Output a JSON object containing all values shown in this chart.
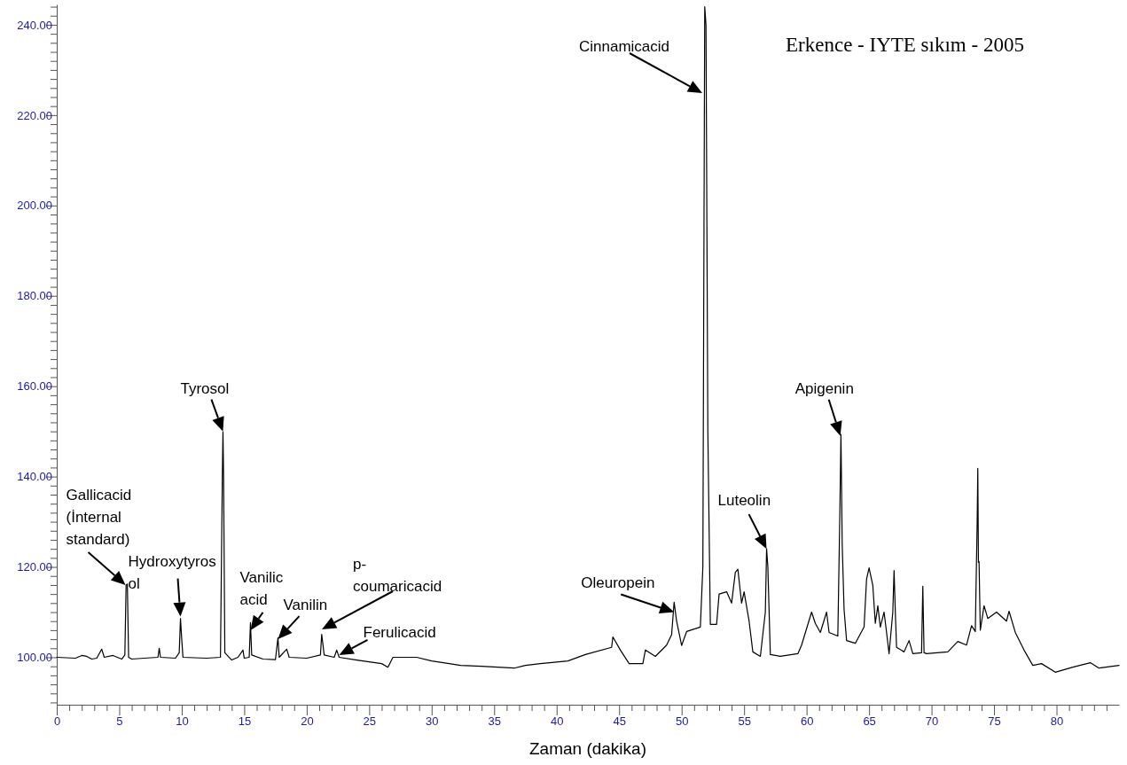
{
  "chart_data": {
    "type": "line",
    "title": "Erkence - IYTE sıkım - 2005",
    "xlabel": "Zaman (dakika)",
    "xlim": [
      0,
      85
    ],
    "ylim": [
      89.5,
      244.5
    ],
    "xticks": [
      0,
      {
        "value": 1,
        "label": null
      },
      {
        "value": 2,
        "label": null
      },
      {
        "value": 3,
        "label": null
      },
      {
        "value": 4,
        "label": null
      },
      5,
      {
        "value": 6,
        "label": null
      },
      {
        "value": 7,
        "label": null
      },
      {
        "value": 8,
        "label": null
      },
      {
        "value": 9,
        "label": null
      },
      10,
      {
        "value": 11,
        "label": null
      },
      {
        "value": 12,
        "label": null
      },
      {
        "value": 13,
        "label": null
      },
      {
        "value": 14,
        "label": null
      },
      15,
      {
        "value": 16,
        "label": null
      },
      {
        "value": 17,
        "label": null
      },
      {
        "value": 18,
        "label": null
      },
      {
        "value": 19,
        "label": null
      },
      20,
      {
        "value": 21,
        "label": null
      },
      {
        "value": 22,
        "label": null
      },
      {
        "value": 23,
        "label": null
      },
      {
        "value": 24,
        "label": null
      },
      25,
      {
        "value": 26,
        "label": null
      },
      {
        "value": 27,
        "label": null
      },
      {
        "value": 28,
        "label": null
      },
      {
        "value": 29,
        "label": null
      },
      30,
      {
        "value": 31,
        "label": null
      },
      {
        "value": 32,
        "label": null
      },
      {
        "value": 33,
        "label": null
      },
      {
        "value": 34,
        "label": null
      },
      35,
      {
        "value": 36,
        "label": null
      },
      {
        "value": 37,
        "label": null
      },
      {
        "value": 38,
        "label": null
      },
      {
        "value": 39,
        "label": null
      },
      40,
      {
        "value": 41,
        "label": null
      },
      {
        "value": 42,
        "label": null
      },
      {
        "value": 43,
        "label": null
      },
      {
        "value": 44,
        "label": null
      },
      45,
      {
        "value": 46,
        "label": null
      },
      {
        "value": 47,
        "label": null
      },
      {
        "value": 48,
        "label": null
      },
      {
        "value": 49,
        "label": null
      },
      50,
      {
        "value": 51,
        "label": null
      },
      {
        "value": 52,
        "label": null
      },
      {
        "value": 53,
        "label": null
      },
      {
        "value": 54,
        "label": null
      },
      55,
      {
        "value": 56,
        "label": null
      },
      {
        "value": 57,
        "label": null
      },
      {
        "value": 58,
        "label": null
      },
      {
        "value": 59,
        "label": null
      },
      60,
      {
        "value": 61,
        "label": null
      },
      {
        "value": 62,
        "label": null
      },
      {
        "value": 63,
        "label": null
      },
      {
        "value": 64,
        "label": null
      },
      65,
      {
        "value": 66,
        "label": null
      },
      {
        "value": 67,
        "label": null
      },
      {
        "value": 68,
        "label": null
      },
      {
        "value": 69,
        "label": null
      },
      70,
      {
        "value": 71,
        "label": null
      },
      {
        "value": 72,
        "label": null
      },
      {
        "value": 73,
        "label": null
      },
      {
        "value": 74,
        "label": null
      },
      75,
      {
        "value": 76,
        "label": null
      },
      {
        "value": 77,
        "label": null
      },
      {
        "value": 78,
        "label": null
      },
      {
        "value": 79,
        "label": null
      },
      80,
      {
        "value": 81,
        "label": null
      },
      {
        "value": 82,
        "label": null
      },
      {
        "value": 83,
        "label": null
      },
      {
        "value": 84,
        "label": null
      }
    ],
    "yticks": [
      {
        "value": 90,
        "label": null
      },
      {
        "value": 92,
        "label": null
      },
      {
        "value": 94,
        "label": null
      },
      {
        "value": 96,
        "label": null
      },
      {
        "value": 98,
        "label": null
      },
      {
        "value": 100,
        "label": "100.00"
      },
      {
        "value": 102,
        "label": null
      },
      {
        "value": 104,
        "label": null
      },
      {
        "value": 106,
        "label": null
      },
      {
        "value": 108,
        "label": null
      },
      {
        "value": 110,
        "label": null
      },
      {
        "value": 112,
        "label": null
      },
      {
        "value": 114,
        "label": null
      },
      {
        "value": 116,
        "label": null
      },
      {
        "value": 118,
        "label": null
      },
      {
        "value": 120,
        "label": "120.00"
      },
      {
        "value": 122,
        "label": null
      },
      {
        "value": 124,
        "label": null
      },
      {
        "value": 126,
        "label": null
      },
      {
        "value": 128,
        "label": null
      },
      {
        "value": 130,
        "label": null
      },
      {
        "value": 132,
        "label": null
      },
      {
        "value": 134,
        "label": null
      },
      {
        "value": 136,
        "label": null
      },
      {
        "value": 138,
        "label": null
      },
      {
        "value": 140,
        "label": "140.00"
      },
      {
        "value": 142,
        "label": null
      },
      {
        "value": 144,
        "label": null
      },
      {
        "value": 146,
        "label": null
      },
      {
        "value": 148,
        "label": null
      },
      {
        "value": 150,
        "label": null
      },
      {
        "value": 152,
        "label": null
      },
      {
        "value": 154,
        "label": null
      },
      {
        "value": 156,
        "label": null
      },
      {
        "value": 158,
        "label": null
      },
      {
        "value": 160,
        "label": "160.00"
      },
      {
        "value": 162,
        "label": null
      },
      {
        "value": 164,
        "label": null
      },
      {
        "value": 166,
        "label": null
      },
      {
        "value": 168,
        "label": null
      },
      {
        "value": 170,
        "label": null
      },
      {
        "value": 172,
        "label": null
      },
      {
        "value": 174,
        "label": null
      },
      {
        "value": 176,
        "label": null
      },
      {
        "value": 178,
        "label": null
      },
      {
        "value": 180,
        "label": "180.00"
      },
      {
        "value": 182,
        "label": null
      },
      {
        "value": 184,
        "label": null
      },
      {
        "value": 186,
        "label": null
      },
      {
        "value": 188,
        "label": null
      },
      {
        "value": 190,
        "label": null
      },
      {
        "value": 192,
        "label": null
      },
      {
        "value": 194,
        "label": null
      },
      {
        "value": 196,
        "label": null
      },
      {
        "value": 198,
        "label": null
      },
      {
        "value": 200,
        "label": "200.00"
      },
      {
        "value": 202,
        "label": null
      },
      {
        "value": 204,
        "label": null
      },
      {
        "value": 206,
        "label": null
      },
      {
        "value": 208,
        "label": null
      },
      {
        "value": 210,
        "label": null
      },
      {
        "value": 212,
        "label": null
      },
      {
        "value": 214,
        "label": null
      },
      {
        "value": 216,
        "label": null
      },
      {
        "value": 218,
        "label": null
      },
      {
        "value": 220,
        "label": "220.00"
      },
      {
        "value": 222,
        "label": null
      },
      {
        "value": 224,
        "label": null
      },
      {
        "value": 226,
        "label": null
      },
      {
        "value": 228,
        "label": null
      },
      {
        "value": 230,
        "label": null
      },
      {
        "value": 232,
        "label": null
      },
      {
        "value": 234,
        "label": null
      },
      {
        "value": 236,
        "label": null
      },
      {
        "value": 238,
        "label": null
      },
      {
        "value": 240,
        "label": "240.00"
      },
      {
        "value": 242,
        "label": null
      },
      {
        "value": 244,
        "label": null
      }
    ],
    "series": [
      {
        "color": "#000000",
        "x": [
          0,
          1.5,
          2,
          2.4,
          2.8,
          3.2,
          3.6,
          3.8,
          4.5,
          5.2,
          5.45,
          5.55,
          5.65,
          5.75,
          6,
          7,
          8.1,
          8.2,
          8.3,
          9.5,
          9.8,
          9.9,
          10.0,
          10.1,
          11,
          12,
          13.1,
          13.25,
          13.3,
          13.35,
          13.45,
          14,
          14.5,
          14.9,
          15.0,
          15.4,
          15.5,
          15.6,
          16.5,
          17.5,
          17.7,
          17.8,
          18.4,
          18.6,
          20,
          21.1,
          21.2,
          21.4,
          22.2,
          22.4,
          22.6,
          24,
          26,
          26.5,
          26.9,
          28.8,
          30,
          32.3,
          34,
          36.6,
          37.5,
          38.7,
          40.9,
          42.3,
          44.4,
          44.5,
          45.1,
          45.8,
          46.9,
          47.1,
          47.9,
          48.8,
          49.2,
          49.4,
          49.6,
          50.0,
          50.4,
          51.5,
          51.7,
          51.85,
          51.95,
          52.1,
          52.3,
          52.8,
          53,
          53.6,
          54,
          54.3,
          54.5,
          54.8,
          55.0,
          55.4,
          55.7,
          56.3,
          56.7,
          56.8,
          56.9,
          57.1,
          57.9,
          59.3,
          59.6,
          60.4,
          60.7,
          61.1,
          61.6,
          61.8,
          62.5,
          62.65,
          62.75,
          62.85,
          63.0,
          63.2,
          63.9,
          64.6,
          64.8,
          65.0,
          65.3,
          65.5,
          65.7,
          65.9,
          66.2,
          66.4,
          66.6,
          66.9,
          67.0,
          67.1,
          67.2,
          67.8,
          68.2,
          68.5,
          69.2,
          69.3,
          69.4,
          69.6,
          71.3,
          72.1,
          72.8,
          73.2,
          73.5,
          73.65,
          73.7,
          73.75,
          73.8,
          73.9,
          74.2,
          74.5,
          75.2,
          76.0,
          76.2,
          76.7,
          77.4,
          78.1,
          78.8,
          79.9,
          81.3,
          82.7,
          83.4,
          85
        ],
        "values": [
          100,
          99.8,
          100.4,
          100.2,
          99.6,
          99.8,
          101.8,
          100,
          100.4,
          99.6,
          100.5,
          116,
          116.2,
          100,
          99.6,
          99.8,
          100,
          102,
          100,
          99.8,
          101,
          108.6,
          104,
          100,
          99.9,
          99.8,
          100,
          140,
          149.9,
          140,
          101,
          99.4,
          100,
          101.6,
          99.8,
          100,
          107.7,
          100.5,
          99.6,
          99.5,
          104.3,
          100,
          101.8,
          100,
          99.8,
          100.5,
          105.1,
          100.5,
          100,
          101.6,
          100,
          99.4,
          98.6,
          97.8,
          100,
          100,
          99.2,
          98.2,
          98,
          97.6,
          98.2,
          98.6,
          99.2,
          100.6,
          102.2,
          104.5,
          101.6,
          98.6,
          98.6,
          101.6,
          100.2,
          102.7,
          105,
          112.2,
          108,
          102.6,
          105.7,
          106.7,
          120,
          244,
          240,
          150,
          107.3,
          107.3,
          114,
          114.5,
          112,
          118.8,
          119.5,
          112,
          114.5,
          108,
          101.2,
          100.2,
          110,
          124,
          120,
          100.6,
          100.2,
          100.8,
          102.7,
          110,
          107.5,
          105.5,
          110,
          105.5,
          104.7,
          130,
          149.3,
          125,
          110.6,
          103.7,
          103.1,
          106.7,
          117.3,
          119.8,
          115.9,
          107.5,
          111.4,
          106.7,
          110,
          105.5,
          100.8,
          110,
          119.2,
          110,
          102.2,
          101.2,
          103.7,
          100.8,
          101,
          115.7,
          101,
          100.8,
          101.2,
          103.5,
          102.7,
          107,
          105.7,
          130,
          141.8,
          121,
          121.2,
          106,
          111.4,
          108.6,
          110,
          108,
          110.2,
          105.5,
          101.6,
          98.2,
          98.6,
          96.7,
          97.8,
          98.8,
          97.6,
          98.2
        ]
      }
    ],
    "annotations": [
      {
        "text": "Gallicacid\n(İnternal\nstandard)",
        "x": 5.5,
        "y": 116
      },
      {
        "text": "Hydroxytyros\nol",
        "x": 9.9,
        "y": 109
      },
      {
        "text": "Tyrosol",
        "x": 13.3,
        "y": 150
      },
      {
        "text": "Vanilic\nacid",
        "x": 15.5,
        "y": 106
      },
      {
        "text": "Vanilin",
        "x": 17.7,
        "y": 104
      },
      "p-\ncoumaricacid",
      {
        "text": "Ferulicacid",
        "x": 22.6,
        "y": 100.5
      },
      {
        "text": "Oleuropein",
        "x": 49.4,
        "y": 110
      },
      "Cinnamicacid",
      {
        "text": "Luteolin",
        "x": 56.8,
        "y": 124
      },
      {
        "text": "Apigenin",
        "x": 62.7,
        "y": 149
      }
    ]
  }
}
